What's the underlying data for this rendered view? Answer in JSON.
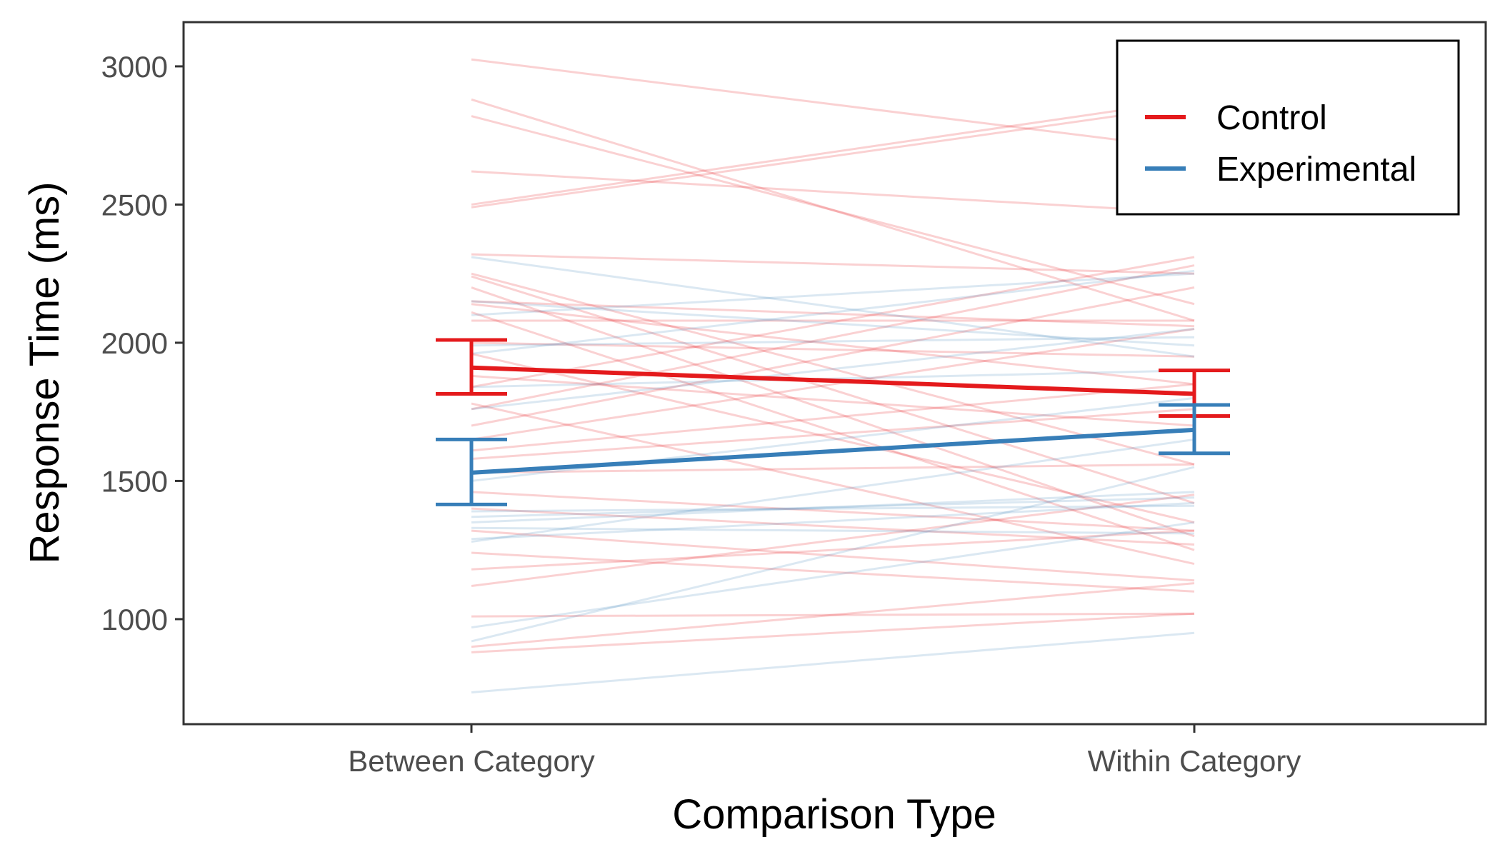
{
  "chart_data": {
    "type": "line",
    "xlabel": "Comparison Type",
    "ylabel": "Response Time (ms)",
    "categories": [
      "Between Category",
      "Within Category"
    ],
    "y_ticks": [
      "1000",
      "1500",
      "2000",
      "2500",
      "3000"
    ],
    "ylim": [
      620,
      3160
    ],
    "grid": false,
    "legend": {
      "position": "top-right",
      "entries": [
        "Control",
        "Experimental"
      ]
    },
    "colors": {
      "Control": "#e41a1c",
      "Experimental": "#377eb8"
    },
    "series": [
      {
        "name": "Control",
        "mean": [
          1910,
          1815
        ],
        "se_lower": [
          1815,
          1735
        ],
        "se_upper": [
          2010,
          1900
        ]
      },
      {
        "name": "Experimental",
        "mean": [
          1530,
          1685
        ],
        "se_lower": [
          1415,
          1600
        ],
        "se_upper": [
          1650,
          1775
        ]
      }
    ],
    "participants": [
      {
        "group": "Control",
        "values": [
          3025,
          2700
        ]
      },
      {
        "group": "Control",
        "values": [
          2880,
          2080
        ]
      },
      {
        "group": "Control",
        "values": [
          2820,
          2140
        ]
      },
      {
        "group": "Control",
        "values": [
          2620,
          2470
        ]
      },
      {
        "group": "Control",
        "values": [
          2500,
          2880
        ]
      },
      {
        "group": "Control",
        "values": [
          2490,
          2860
        ]
      },
      {
        "group": "Control",
        "values": [
          2320,
          2250
        ]
      },
      {
        "group": "Control",
        "values": [
          2250,
          1560
        ]
      },
      {
        "group": "Control",
        "values": [
          2240,
          1420
        ]
      },
      {
        "group": "Control",
        "values": [
          2200,
          1300
        ]
      },
      {
        "group": "Control",
        "values": [
          2150,
          2060
        ]
      },
      {
        "group": "Control",
        "values": [
          2140,
          1850
        ]
      },
      {
        "group": "Control",
        "values": [
          2110,
          1250
        ]
      },
      {
        "group": "Control",
        "values": [
          2080,
          2080
        ]
      },
      {
        "group": "Control",
        "values": [
          2000,
          1950
        ]
      },
      {
        "group": "Control",
        "values": [
          1960,
          1350
        ]
      },
      {
        "group": "Control",
        "values": [
          1880,
          1700
        ]
      },
      {
        "group": "Control",
        "values": [
          1840,
          2310
        ]
      },
      {
        "group": "Control",
        "values": [
          1780,
          1200
        ]
      },
      {
        "group": "Control",
        "values": [
          1760,
          2280
        ]
      },
      {
        "group": "Control",
        "values": [
          1700,
          2200
        ]
      },
      {
        "group": "Control",
        "values": [
          1650,
          2050
        ]
      },
      {
        "group": "Control",
        "values": [
          1610,
          1850
        ]
      },
      {
        "group": "Control",
        "values": [
          1580,
          1760
        ]
      },
      {
        "group": "Control",
        "values": [
          1530,
          1560
        ]
      },
      {
        "group": "Control",
        "values": [
          1460,
          1320
        ]
      },
      {
        "group": "Control",
        "values": [
          1400,
          1270
        ]
      },
      {
        "group": "Control",
        "values": [
          1320,
          1140
        ]
      },
      {
        "group": "Control",
        "values": [
          1240,
          1100
        ]
      },
      {
        "group": "Control",
        "values": [
          1180,
          1320
        ]
      },
      {
        "group": "Control",
        "values": [
          1120,
          1450
        ]
      },
      {
        "group": "Control",
        "values": [
          1010,
          1020
        ]
      },
      {
        "group": "Control",
        "values": [
          900,
          1130
        ]
      },
      {
        "group": "Control",
        "values": [
          880,
          1020
        ]
      },
      {
        "group": "Experimental",
        "values": [
          2310,
          1950
        ]
      },
      {
        "group": "Experimental",
        "values": [
          2150,
          1990
        ]
      },
      {
        "group": "Experimental",
        "values": [
          2100,
          2250
        ]
      },
      {
        "group": "Experimental",
        "values": [
          1990,
          2020
        ]
      },
      {
        "group": "Experimental",
        "values": [
          1960,
          2260
        ]
      },
      {
        "group": "Experimental",
        "values": [
          1840,
          1900
        ]
      },
      {
        "group": "Experimental",
        "values": [
          1760,
          2050
        ]
      },
      {
        "group": "Experimental",
        "values": [
          1500,
          1800
        ]
      },
      {
        "group": "Experimental",
        "values": [
          1390,
          1410
        ]
      },
      {
        "group": "Experimental",
        "values": [
          1370,
          1440
        ]
      },
      {
        "group": "Experimental",
        "values": [
          1350,
          1460
        ]
      },
      {
        "group": "Experimental",
        "values": [
          1330,
          1310
        ]
      },
      {
        "group": "Experimental",
        "values": [
          1290,
          1420
        ]
      },
      {
        "group": "Experimental",
        "values": [
          1280,
          1650
        ]
      },
      {
        "group": "Experimental",
        "values": [
          970,
          1350
        ]
      },
      {
        "group": "Experimental",
        "values": [
          920,
          1550
        ]
      },
      {
        "group": "Experimental",
        "values": [
          735,
          950
        ]
      }
    ]
  }
}
